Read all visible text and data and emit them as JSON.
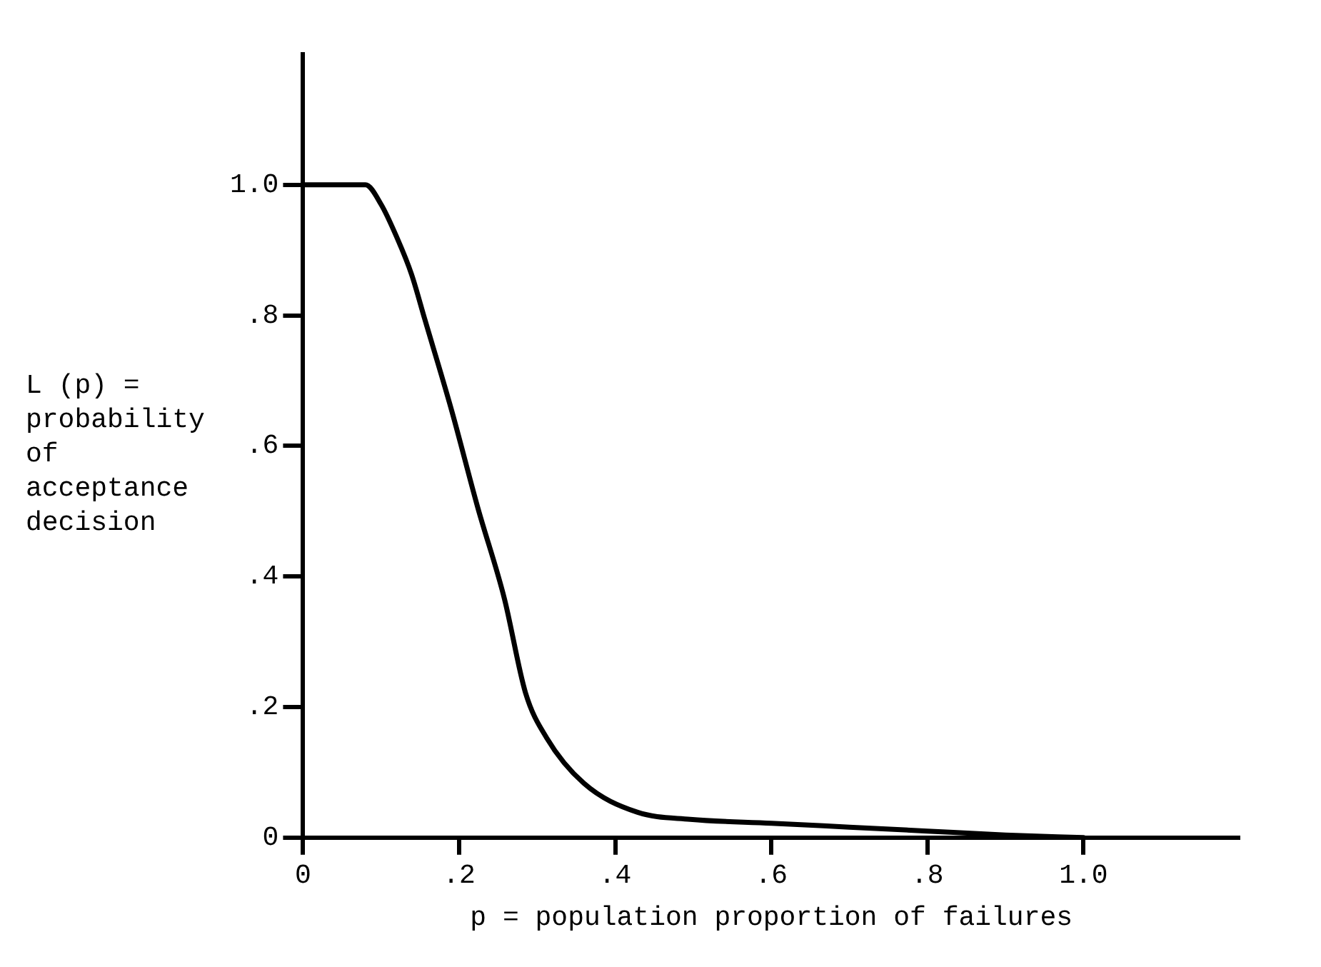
{
  "chart_data": {
    "type": "line",
    "xlabel": "p = population proportion of failures",
    "ylabel": "L (p) = probability of acceptance decision",
    "x": [
      0,
      0.08,
      0.1,
      0.12,
      0.139,
      0.156,
      0.19,
      0.224,
      0.258,
      0.285,
      0.312,
      0.36,
      0.428,
      0.496,
      0.6,
      0.7,
      0.8,
      0.9,
      1.0
    ],
    "series": [
      {
        "color": "#000000",
        "values": [
          1.0,
          1.0,
          0.97,
          0.92,
          0.863,
          0.794,
          0.656,
          0.505,
          0.366,
          0.222,
          0.153,
          0.083,
          0.039,
          0.028,
          0.022,
          0.016,
          0.01,
          0.004,
          0
        ]
      }
    ],
    "xlim": [
      0,
      1.2
    ],
    "ylim": [
      0,
      1.2
    ],
    "xticks": [
      0,
      {
        "value": 0.2,
        "label": ".2"
      },
      {
        "value": 0.4,
        "label": ".4"
      },
      {
        "value": 0.6,
        "label": ".6"
      },
      {
        "value": 0.8,
        "label": ".8"
      },
      {
        "value": 1.0,
        "label": "1.0"
      }
    ],
    "yticks": [
      0,
      {
        "value": 0.2,
        "label": ".2"
      },
      {
        "value": 0.4,
        "label": ".4"
      },
      {
        "value": 0.6,
        "label": ".6"
      },
      {
        "value": 0.8,
        "label": ".8"
      },
      {
        "value": 1.0,
        "label": "1.0"
      }
    ],
    "grid": false,
    "legend": false,
    "marker": "none",
    "line_style": "solid"
  }
}
